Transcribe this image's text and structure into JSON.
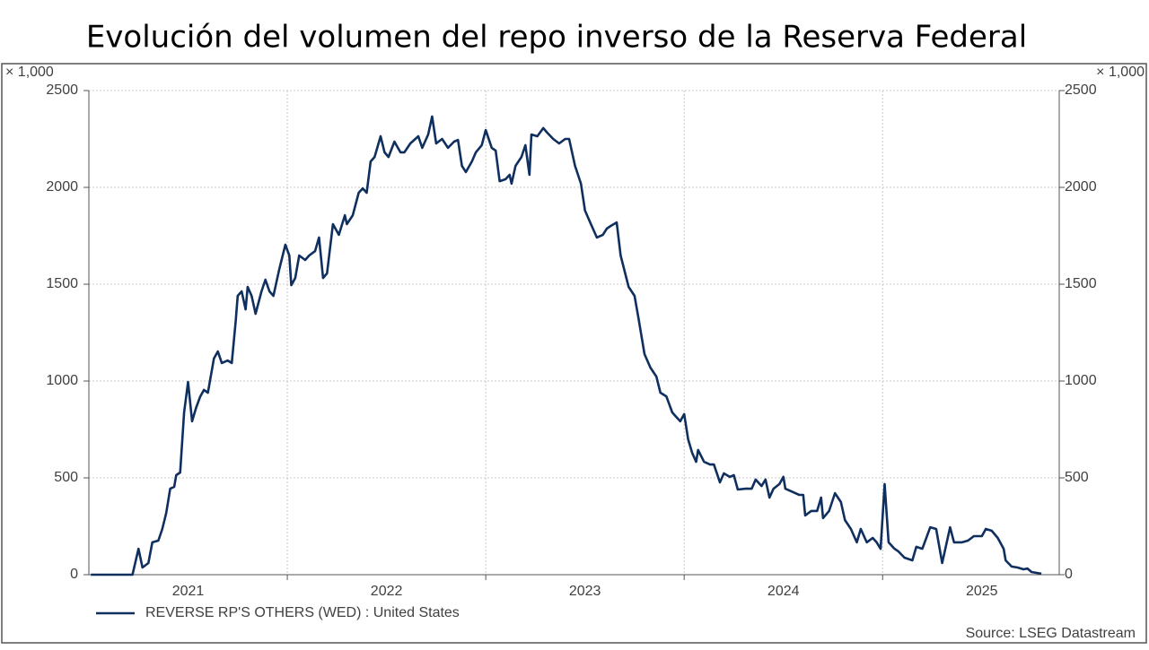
{
  "chart_data": {
    "type": "line",
    "title": "Evolución del volumen del repo inverso de la Reserva Federal",
    "y_label": "× 1,000",
    "y2_label": "× 1,000",
    "source": "Source: LSEG Datastream",
    "xlim": [
      2021,
      2025.89
    ],
    "xticks": [
      {
        "value": 2021.5,
        "label": "2021"
      },
      {
        "value": 2022.5,
        "label": "2022"
      },
      {
        "value": 2023.5,
        "label": "2023"
      },
      {
        "value": 2024.5,
        "label": "2024"
      },
      {
        "value": 2025.5,
        "label": "2025"
      }
    ],
    "xgrid": [
      2022,
      2023,
      2024,
      2025
    ],
    "ylim": [
      0,
      2500
    ],
    "yticks": [
      0,
      500,
      1000,
      1500,
      2000,
      2500
    ],
    "y2lim": [
      0,
      2500
    ],
    "y2ticks": [
      0,
      500,
      1000,
      1500,
      2000,
      2500
    ],
    "grid": true,
    "legend": "bottom-left",
    "x": [
      2021.01,
      2021.22,
      2021.25,
      2021.27,
      2021.3,
      2021.32,
      2021.35,
      2021.37,
      2021.39,
      2021.41,
      2021.43,
      2021.44,
      2021.46,
      2021.48,
      2021.5,
      2021.52,
      2021.54,
      2021.56,
      2021.58,
      2021.6,
      2021.63,
      2021.65,
      2021.67,
      2021.7,
      2021.72,
      2021.74,
      2021.75,
      2021.77,
      2021.79,
      2021.8,
      2021.82,
      2021.84,
      2021.87,
      2021.89,
      2021.91,
      2021.93,
      2021.96,
      2021.99,
      2022.01,
      2022.02,
      2022.04,
      2022.06,
      2022.09,
      2022.11,
      2022.14,
      2022.16,
      2022.18,
      2022.2,
      2022.23,
      2022.26,
      2022.29,
      2022.3,
      2022.33,
      2022.36,
      2022.38,
      2022.4,
      2022.42,
      2022.44,
      2022.47,
      2022.49,
      2022.51,
      2022.54,
      2022.57,
      2022.59,
      2022.62,
      2022.66,
      2022.68,
      2022.71,
      2022.73,
      2022.75,
      2022.78,
      2022.81,
      2022.84,
      2022.86,
      2022.88,
      2022.9,
      2022.93,
      2022.95,
      2022.98,
      2023.0,
      2023.03,
      2023.05,
      2023.07,
      2023.1,
      2023.12,
      2023.13,
      2023.15,
      2023.18,
      2023.2,
      2023.22,
      2023.23,
      2023.26,
      2023.29,
      2023.31,
      2023.34,
      2023.37,
      2023.4,
      2023.42,
      2023.45,
      2023.48,
      2023.5,
      2023.53,
      2023.56,
      2023.59,
      2023.61,
      2023.63,
      2023.66,
      2023.68,
      2023.72,
      2023.75,
      2023.77,
      2023.8,
      2023.83,
      2023.86,
      2023.88,
      2023.91,
      2023.94,
      2023.96,
      2023.98,
      2024.0,
      2024.02,
      2024.04,
      2024.06,
      2024.07,
      2024.1,
      2024.13,
      2024.15,
      2024.18,
      2024.2,
      2024.23,
      2024.25,
      2024.27,
      2024.31,
      2024.34,
      2024.36,
      2024.39,
      2024.41,
      2024.43,
      2024.45,
      2024.48,
      2024.5,
      2024.51,
      2024.54,
      2024.58,
      2024.6,
      2024.61,
      2024.64,
      2024.67,
      2024.69,
      2024.7,
      2024.73,
      2024.76,
      2024.79,
      2024.81,
      2024.84,
      2024.87,
      2024.89,
      2024.92,
      2024.95,
      2024.97,
      2024.99,
      2025.01,
      2025.03,
      2025.06,
      2025.08,
      2025.11,
      2025.15,
      2025.17,
      2025.2,
      2025.24,
      2025.27,
      2025.3,
      2025.34,
      2025.36,
      2025.4,
      2025.43,
      2025.46,
      2025.5,
      2025.52,
      2025.55,
      2025.58,
      2025.61,
      2025.62,
      2025.65,
      2025.68,
      2025.71,
      2025.73,
      2025.75,
      2025.78,
      2025.8
    ],
    "series": [
      {
        "name": "REVERSE RP'S OTHERS (WED) : United States",
        "color": "#0f2f5f",
        "values": [
          0,
          0,
          134,
          37,
          60,
          167,
          176,
          236,
          319,
          444,
          454,
          514,
          528,
          838,
          995,
          792,
          861,
          917,
          954,
          940,
          1116,
          1153,
          1093,
          1106,
          1093,
          1310,
          1440,
          1463,
          1370,
          1486,
          1440,
          1347,
          1463,
          1523,
          1463,
          1440,
          1579,
          1704,
          1648,
          1495,
          1532,
          1648,
          1625,
          1648,
          1671,
          1741,
          1532,
          1556,
          1810,
          1755,
          1856,
          1810,
          1856,
          1972,
          1995,
          1972,
          2134,
          2157,
          2264,
          2181,
          2157,
          2236,
          2181,
          2181,
          2227,
          2264,
          2204,
          2273,
          2366,
          2227,
          2250,
          2204,
          2236,
          2245,
          2111,
          2079,
          2134,
          2181,
          2218,
          2296,
          2204,
          2190,
          2032,
          2042,
          2065,
          2019,
          2111,
          2157,
          2218,
          2065,
          2273,
          2264,
          2306,
          2282,
          2250,
          2227,
          2250,
          2250,
          2111,
          2019,
          1880,
          1810,
          1741,
          1755,
          1787,
          1801,
          1819,
          1648,
          1486,
          1440,
          1324,
          1139,
          1069,
          1023,
          940,
          921,
          838,
          815,
          792,
          829,
          699,
          630,
          583,
          644,
          583,
          569,
          569,
          477,
          523,
          505,
          514,
          440,
          444,
          444,
          491,
          458,
          491,
          398,
          444,
          468,
          505,
          444,
          430,
          412,
          412,
          306,
          329,
          329,
          398,
          292,
          329,
          421,
          375,
          282,
          236,
          167,
          236,
          167,
          190,
          167,
          134,
          468,
          167,
          134,
          120,
          88,
          74,
          144,
          134,
          245,
          236,
          60,
          245,
          167,
          167,
          176,
          199,
          199,
          236,
          227,
          190,
          134,
          74,
          42,
          37,
          28,
          32,
          14,
          9,
          5
        ]
      }
    ]
  }
}
